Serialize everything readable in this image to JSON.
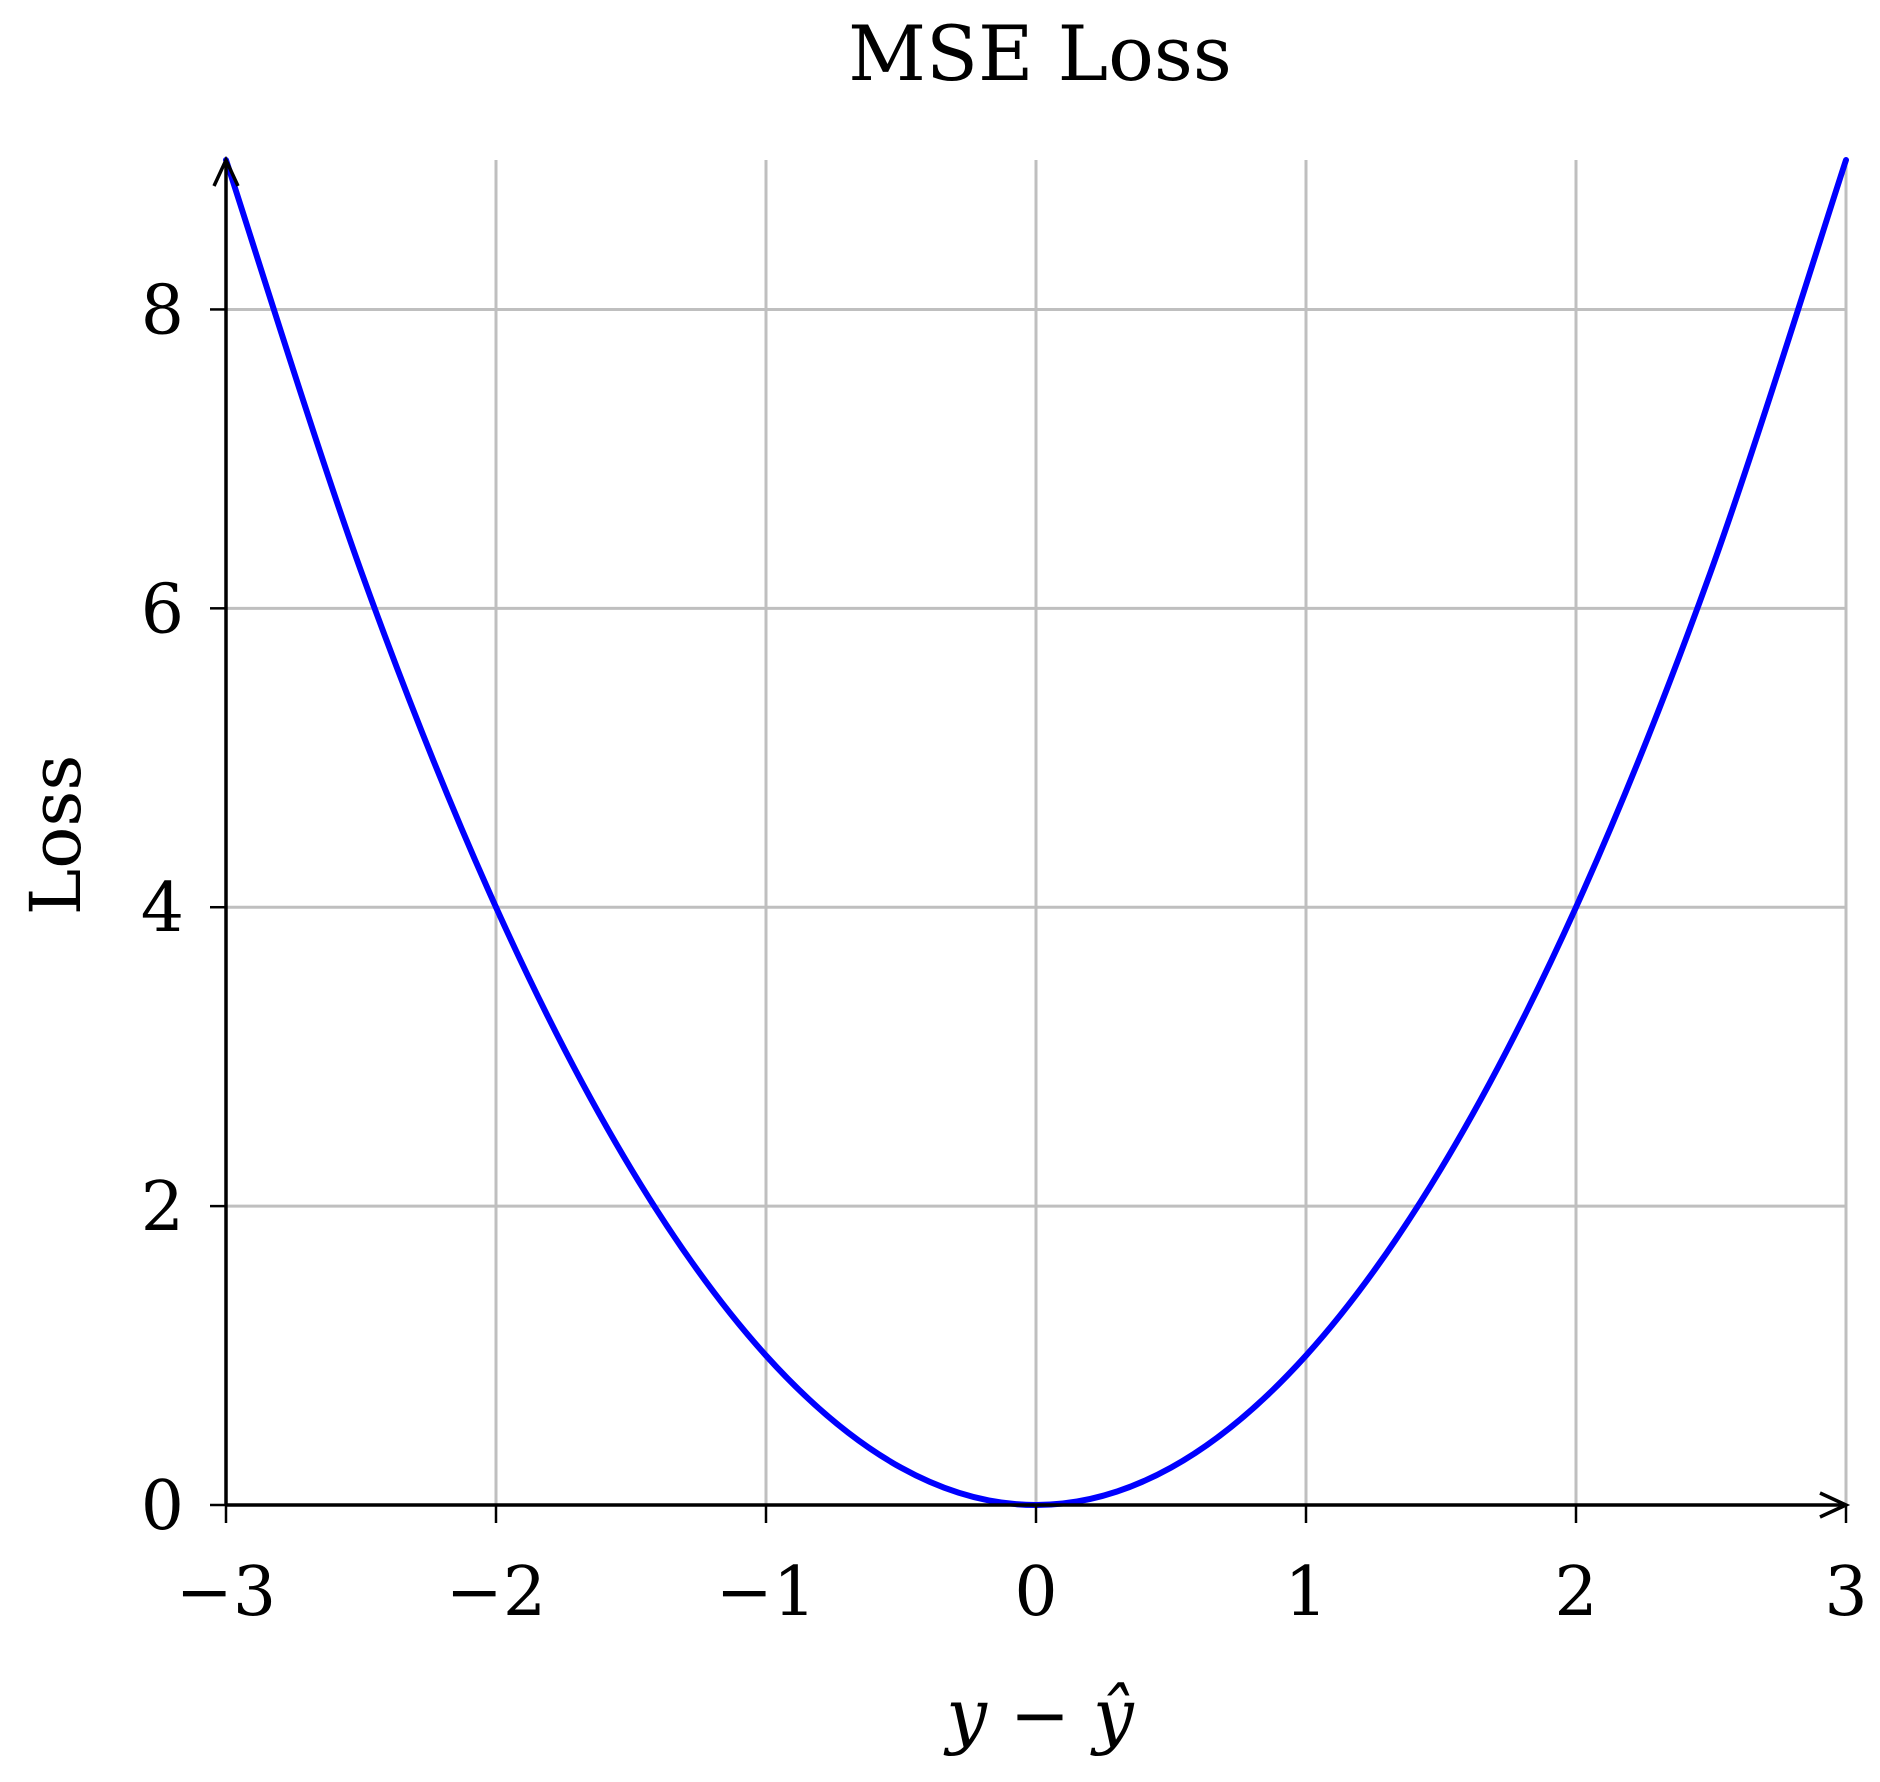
{
  "chart_data": {
    "type": "line",
    "title": "MSE Loss",
    "xlabel": "y − ŷ",
    "ylabel": "Loss",
    "xlim": [
      -3,
      3
    ],
    "ylim": [
      0,
      9
    ],
    "xticks": [
      -3,
      -2,
      -1,
      0,
      1,
      2,
      3
    ],
    "xtick_labels": [
      "−3",
      "−2",
      "−1",
      "0",
      "1",
      "2",
      "3"
    ],
    "yticks": [
      0,
      2,
      4,
      6,
      8
    ],
    "ytick_labels": [
      "0",
      "2",
      "4",
      "6",
      "8"
    ],
    "grid": true,
    "series": [
      {
        "color": "#0000ff",
        "x": [
          -3,
          -2.5,
          -2,
          -1.5,
          -1,
          -0.5,
          0,
          0.5,
          1,
          1.5,
          2,
          2.5,
          3
        ],
        "y": [
          9,
          6.25,
          4,
          2.25,
          1,
          0.25,
          0,
          0.25,
          1,
          2.25,
          4,
          6.25,
          9
        ]
      }
    ]
  }
}
